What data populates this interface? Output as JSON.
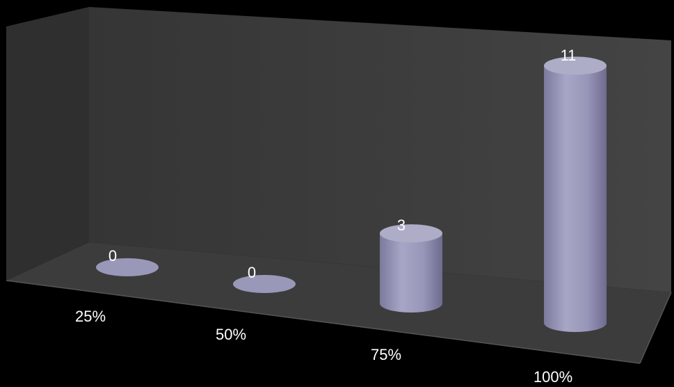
{
  "chart_data": {
    "type": "bar",
    "style": "3d-cylinder",
    "categories": [
      "25%",
      "50%",
      "75%",
      "100%"
    ],
    "values": [
      0,
      0,
      3,
      11
    ],
    "data_labels": [
      "0",
      "0",
      "3",
      "11"
    ],
    "title": "",
    "xlabel": "",
    "ylabel": "",
    "ylim": [
      0,
      11
    ],
    "grid": false,
    "legend": "none",
    "colors": {
      "background": "#000000",
      "back_wall": "#3a3a3a",
      "side_wall": "#333333",
      "floor": "#3c3c3c",
      "bar": "#9a98b8",
      "bar_top": "#aeadc8",
      "text": "#ffffff"
    }
  }
}
